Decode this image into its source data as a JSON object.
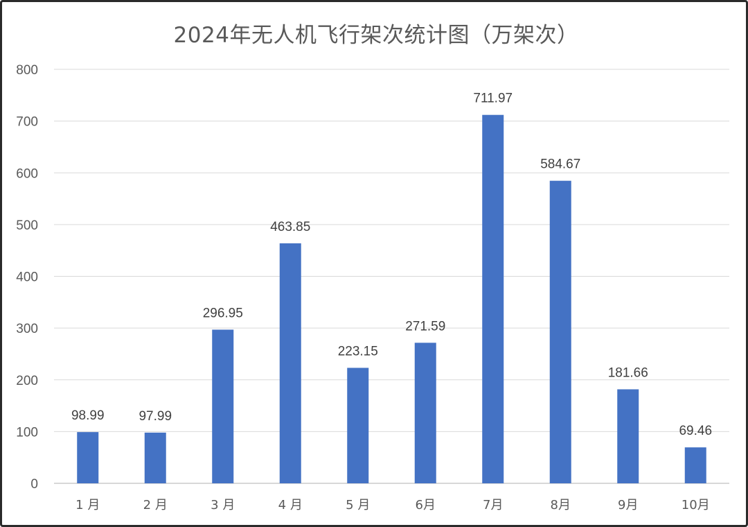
{
  "chart_data": {
    "type": "bar",
    "title": "2024年无人机飞行架次统计图（万架次）",
    "xlabel": "",
    "ylabel": "",
    "categories": [
      "1 月",
      "2 月",
      "3 月",
      "4 月",
      "5 月",
      "6月",
      "7月",
      "8月",
      "9月",
      "10月"
    ],
    "values": [
      98.99,
      97.99,
      296.95,
      463.85,
      223.15,
      271.59,
      711.97,
      584.67,
      181.66,
      69.46
    ],
    "data_labels": [
      "98.99",
      "97.99",
      "296.95",
      "463.85",
      "223.15",
      "271.59",
      "711.97",
      "584.67",
      "181.66",
      "69.46"
    ],
    "ylim": [
      0,
      800
    ],
    "yticks": [
      0,
      100,
      200,
      300,
      400,
      500,
      600,
      700,
      800
    ],
    "grid": true,
    "legend": "none",
    "bar_color": "#4472C4"
  }
}
